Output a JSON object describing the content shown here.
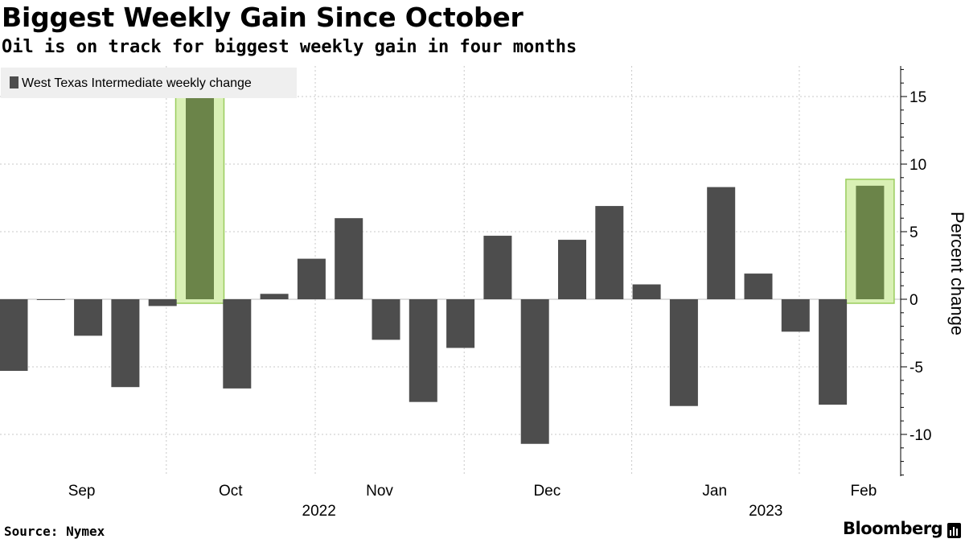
{
  "chart_data": {
    "type": "bar",
    "title": "Biggest Weekly Gain Since October",
    "subtitle": "Oil is on track for biggest weekly gain in four months",
    "ylabel": "Percent change",
    "ylim": [
      -13,
      17.5
    ],
    "yticks": [
      15,
      10,
      5,
      0,
      -5,
      -10
    ],
    "series": [
      {
        "name": "West Texas Intermediate weekly change",
        "color": "#4d4d4d",
        "values": [
          -5.3,
          -0.05,
          -2.7,
          -6.5,
          -0.5,
          15.0,
          -6.6,
          0.4,
          3.0,
          6.0,
          -3.0,
          -7.6,
          -3.6,
          4.7,
          -10.7,
          4.4,
          6.9,
          1.1,
          -7.9,
          8.3,
          1.9,
          -2.4,
          -7.8,
          8.4
        ]
      }
    ],
    "highlighted_weeks": [
      5,
      23
    ],
    "highlight_bar_color": "#6b8449",
    "highlight_box_fill": "#d9f0b5",
    "highlight_box_stroke": "#9acd5e",
    "month_labels": [
      {
        "label": "Sep",
        "week": 2
      },
      {
        "label": "Oct",
        "week": 6
      },
      {
        "label": "Nov",
        "week": 10
      },
      {
        "label": "Dec",
        "week": 14.5
      },
      {
        "label": "Jan",
        "week": 19
      },
      {
        "label": "Feb",
        "week": 23
      }
    ],
    "month_boundaries": [
      4.1,
      8.1,
      12.1,
      16.6,
      21.1
    ],
    "year_labels": [
      {
        "label": "2022",
        "week": 8.2
      },
      {
        "label": "2023",
        "week": 20.2
      }
    ],
    "legend_position": "top-left",
    "grid": true
  },
  "footer": {
    "source": "Source: Nymex",
    "brand": "Bloomberg"
  }
}
